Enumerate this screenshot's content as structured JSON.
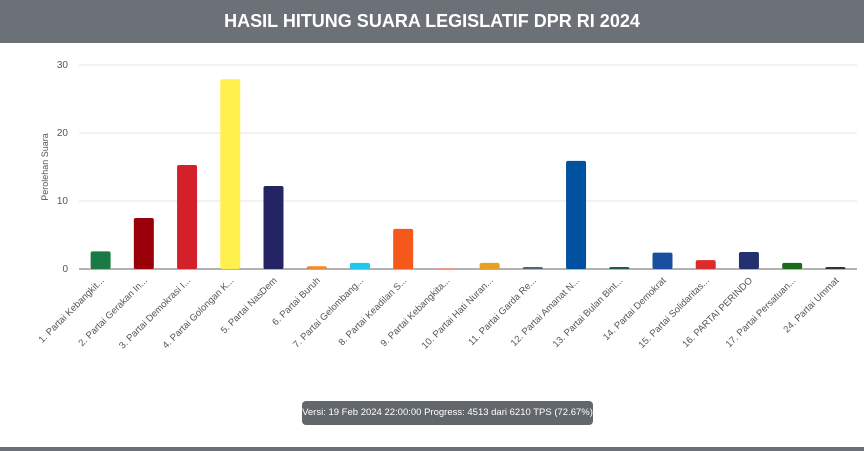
{
  "header": {
    "title": "HASIL HITUNG SUARA LEGISLATIF DPR RI 2024"
  },
  "chart_data": {
    "type": "bar",
    "ylabel": "Perolehan Suara",
    "categories": [
      "1. Partai Kebangkit...",
      "2. Partai Gerakan In...",
      "3. Partai Demokrasi I...",
      "4. Partai Golongan K...",
      "5. Partai NasDem",
      "6. Partai Buruh",
      "7. Partai Gelombang...",
      "8. Partai Keadilan S...",
      "9. Partai Kebangkita...",
      "10. Partai Hati Nuran...",
      "11. Partai Garda Re...",
      "12. Partai Amanat N...",
      "13. Partai Bulan Bint...",
      "14. Partai Demokrat",
      "15. Partai Solidaritas...",
      "16. PARTAI PERINDO",
      "17. Partai Persatuan...",
      "24. Partai Ummat"
    ],
    "values": [
      2.6,
      7.5,
      15.3,
      27.9,
      12.2,
      0.4,
      0.9,
      5.9,
      0.1,
      0.9,
      0.3,
      15.9,
      0.3,
      2.4,
      1.3,
      2.5,
      0.9,
      0.3
    ],
    "colors": [
      "#1a7a44",
      "#99000a",
      "#d4202a",
      "#fff04d",
      "#242465",
      "#f28a2b",
      "#1ec8f0",
      "#f5581a",
      "#e05a3a",
      "#e8a020",
      "#4d6680",
      "#0052a0",
      "#1e6040",
      "#1a4fa0",
      "#dd2a2a",
      "#25306e",
      "#1a6a1a",
      "#333333"
    ],
    "ylim": [
      0,
      30
    ],
    "yticks": [
      0,
      10,
      20,
      30
    ],
    "grid": true
  },
  "footer": {
    "version": "Versi: 19 Feb 2024 22:00:00 Progress: 4513 dari 6210 TPS (72.67%)"
  }
}
